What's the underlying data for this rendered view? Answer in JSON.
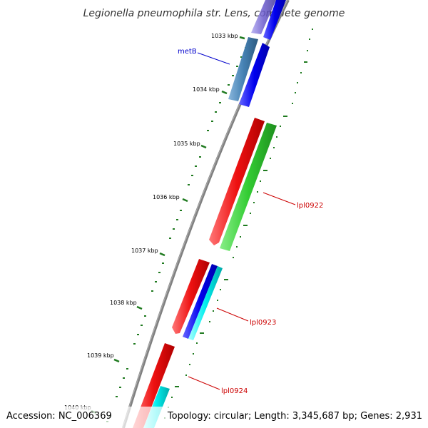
{
  "title": "Legionella pneumophila str. Lens, complete genome",
  "footer": {
    "accession": "Accession: NC_006369",
    "topology": "Topology: circular; Length: 3,345,687 bp; Genes: 2,931"
  },
  "ticks": [
    "1033 kbp",
    "1034 kbp",
    "1035 kbp",
    "1036 kbp",
    "1037 kbp",
    "1038 kbp",
    "1039 kbp",
    "1040 kbp"
  ],
  "gene_labels": [
    {
      "name": "metB",
      "color": "#0000cc"
    },
    {
      "name": "lpl0922",
      "color": "#cc0000"
    },
    {
      "name": "lpl0923",
      "color": "#cc0000"
    },
    {
      "name": "lpl0924",
      "color": "#cc0000"
    }
  ],
  "colors": {
    "backbone": "#808080",
    "tick_green": "#1f7a1f",
    "red": "#ee1111",
    "green": "#33cc33",
    "blue": "#0000ee",
    "cyan": "#00eeee",
    "steelblue": "#4682b4",
    "purple": "#6a5acd"
  }
}
